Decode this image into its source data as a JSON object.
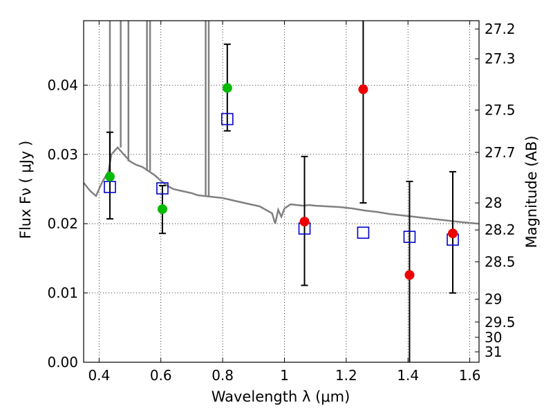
{
  "chart_data": {
    "type": "scatter",
    "xlabel": "Wavelength  λ (μm)",
    "ylabel": "Flux  Fν  ( μJy )",
    "y2label": "Magnitude (AB)",
    "xlim": [
      0.35,
      1.63
    ],
    "ylim": [
      0.0,
      0.0493
    ],
    "x_ticks": [
      0.4,
      0.6,
      0.8,
      1.0,
      1.2,
      1.4,
      1.6
    ],
    "x_tick_labels": [
      "0.4",
      "0.6",
      "0.8",
      "1",
      "1.2",
      "1.4",
      "1.6"
    ],
    "y_ticks": [
      0.0,
      0.01,
      0.02,
      0.03,
      0.04
    ],
    "y_tick_labels": [
      "0.00",
      "0.01",
      "0.02",
      "0.03",
      "0.04"
    ],
    "y2_ticks": [
      {
        "label": "27.2",
        "flux": 0.0481
      },
      {
        "label": "27.3",
        "flux": 0.0438
      },
      {
        "label": "27.5",
        "flux": 0.0364
      },
      {
        "label": "27.7",
        "flux": 0.0303
      },
      {
        "label": "28",
        "flux": 0.023
      },
      {
        "label": "28.2",
        "flux": 0.0191
      },
      {
        "label": "28.5",
        "flux": 0.0145
      },
      {
        "label": "29",
        "flux": 0.0091
      },
      {
        "label": "29.5",
        "flux": 0.0058
      },
      {
        "label": "30",
        "flux": 0.0036
      },
      {
        "label": "31",
        "flux": 0.0015
      }
    ],
    "grid": true,
    "series": [
      {
        "name": "model_spectrum",
        "style": "line",
        "color": "#808080",
        "points": [
          [
            0.35,
            0.0259
          ],
          [
            0.37,
            0.0248
          ],
          [
            0.39,
            0.024
          ],
          [
            0.41,
            0.026
          ],
          [
            0.43,
            0.0275
          ],
          [
            0.44,
            0.03
          ],
          [
            0.46,
            0.031
          ],
          [
            0.48,
            0.03
          ],
          [
            0.5,
            0.029
          ],
          [
            0.52,
            0.0285
          ],
          [
            0.54,
            0.0282
          ],
          [
            0.56,
            0.0276
          ],
          [
            0.58,
            0.027
          ],
          [
            0.6,
            0.0262
          ],
          [
            0.62,
            0.0255
          ],
          [
            0.64,
            0.025
          ],
          [
            0.66,
            0.0248
          ],
          [
            0.68,
            0.0246
          ],
          [
            0.7,
            0.0244
          ],
          [
            0.72,
            0.0241
          ],
          [
            0.74,
            0.024
          ],
          [
            0.76,
            0.0239
          ],
          [
            0.78,
            0.0238
          ],
          [
            0.8,
            0.0237
          ],
          [
            0.82,
            0.0235
          ],
          [
            0.84,
            0.0233
          ],
          [
            0.86,
            0.0231
          ],
          [
            0.88,
            0.0229
          ],
          [
            0.9,
            0.0227
          ],
          [
            0.92,
            0.0225
          ],
          [
            0.94,
            0.022
          ],
          [
            0.96,
            0.0215
          ],
          [
            0.97,
            0.02
          ],
          [
            0.98,
            0.022
          ],
          [
            0.99,
            0.021
          ],
          [
            1.0,
            0.0222
          ],
          [
            1.02,
            0.0228
          ],
          [
            1.04,
            0.0227
          ],
          [
            1.06,
            0.0226
          ],
          [
            1.08,
            0.0227
          ],
          [
            1.1,
            0.0226
          ],
          [
            1.14,
            0.0225
          ],
          [
            1.18,
            0.0224
          ],
          [
            1.22,
            0.0222
          ],
          [
            1.26,
            0.0219
          ],
          [
            1.3,
            0.0217
          ],
          [
            1.34,
            0.0214
          ],
          [
            1.38,
            0.0212
          ],
          [
            1.42,
            0.021
          ],
          [
            1.46,
            0.0208
          ],
          [
            1.5,
            0.0206
          ],
          [
            1.54,
            0.0204
          ],
          [
            1.58,
            0.0202
          ],
          [
            1.63,
            0.02
          ]
        ],
        "spikes": [
          {
            "x": 0.435,
            "y": 0.0493
          },
          {
            "x": 0.47,
            "y": 0.0493
          },
          {
            "x": 0.495,
            "y": 0.0493
          },
          {
            "x": 0.555,
            "y": 0.0493
          },
          {
            "x": 0.565,
            "y": 0.0493
          },
          {
            "x": 0.745,
            "y": 0.0493
          },
          {
            "x": 0.755,
            "y": 0.0493
          }
        ]
      },
      {
        "name": "model_photometry",
        "style": "open-square",
        "color": "#0000cc",
        "points": [
          [
            0.435,
            0.0253
          ],
          [
            0.605,
            0.0251
          ],
          [
            0.815,
            0.0351
          ],
          [
            1.065,
            0.0193
          ],
          [
            1.255,
            0.0187
          ],
          [
            1.405,
            0.0181
          ],
          [
            1.545,
            0.0177
          ]
        ]
      },
      {
        "name": "observed_green",
        "style": "filled-circle",
        "color": "#00bb00",
        "points": [
          {
            "x": 0.435,
            "y": 0.0268,
            "ylow": 0.0207,
            "yhigh": 0.0332
          },
          {
            "x": 0.605,
            "y": 0.0221,
            "ylow": 0.0186,
            "yhigh": 0.0255
          },
          {
            "x": 0.815,
            "y": 0.0396,
            "ylow": 0.0334,
            "yhigh": 0.0459
          }
        ]
      },
      {
        "name": "observed_red",
        "style": "filled-circle",
        "color": "#ee0000",
        "points": [
          {
            "x": 1.065,
            "y": 0.0203,
            "ylow": 0.0111,
            "yhigh": 0.0297
          },
          {
            "x": 1.255,
            "y": 0.0394,
            "ylow": 0.023,
            "yhigh": 0.0493
          },
          {
            "x": 1.405,
            "y": 0.0126,
            "ylow": 0.0,
            "yhigh": 0.0261
          },
          {
            "x": 1.545,
            "y": 0.0186,
            "ylow": 0.01,
            "yhigh": 0.0275
          }
        ]
      }
    ]
  }
}
